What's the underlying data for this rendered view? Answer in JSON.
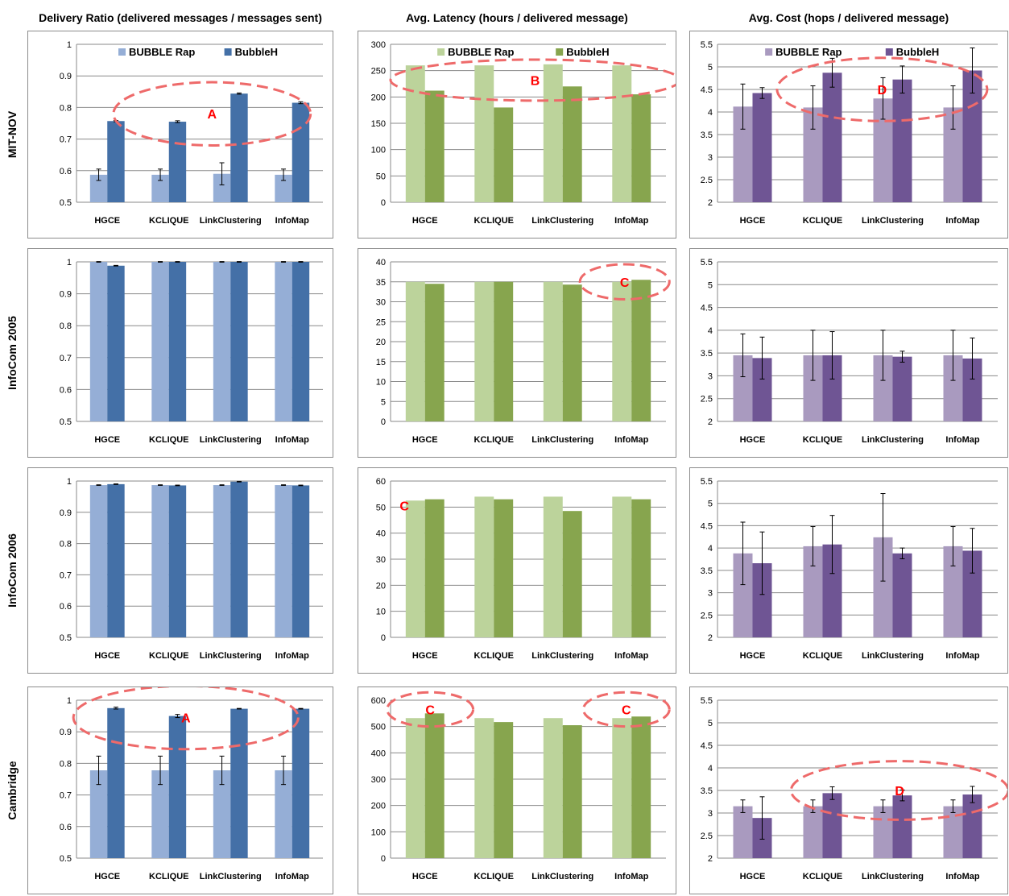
{
  "column_titles": [
    "Delivery Ratio (delivered messages / messages sent)",
    "Avg. Latency (hours / delivered message)",
    "Avg. Cost (hops / delivered message)"
  ],
  "row_labels": [
    "MIT-NOV",
    "InfoCom 2005",
    "InfoCom 2006",
    "Cambridge"
  ],
  "colors": {
    "ratio": [
      "#95aed6",
      "#4470a7"
    ],
    "latency": [
      "#bcd39b",
      "#87a54e"
    ],
    "cost": [
      "#a99abf",
      "#6f5594"
    ],
    "annotation": "#ee6a6a"
  },
  "chart_data": [
    {
      "type": "bar",
      "row": "MIT-NOV",
      "metric": "Delivery Ratio",
      "categories": [
        "HGCE",
        "KCLIQUE",
        "LinkClustering",
        "InfoMap"
      ],
      "ylim": [
        0.5,
        1
      ],
      "yticks": [
        "0.5",
        "0.6",
        "0.7",
        "0.8",
        "0.9",
        "1"
      ],
      "legend": [
        "BUBBLE Rap",
        "BubbleH"
      ],
      "series": [
        {
          "name": "BUBBLE Rap",
          "values": [
            0.587,
            0.587,
            0.59,
            0.587
          ],
          "errors": [
            0.018,
            0.018,
            0.035,
            0.018
          ]
        },
        {
          "name": "BubbleH",
          "values": [
            0.757,
            0.755,
            0.844,
            0.815
          ],
          "errors": [
            0.002,
            0.003,
            0.002,
            0.003
          ]
        }
      ],
      "annotations": [
        {
          "label": "A",
          "cat_from": 0.6,
          "cat_to": 3.8,
          "y": 0.78,
          "ry": 0.1
        }
      ]
    },
    {
      "type": "bar",
      "row": "MIT-NOV",
      "metric": "Avg. Latency",
      "categories": [
        "HGCE",
        "KCLIQUE",
        "LinkClustering",
        "InfoMap"
      ],
      "ylim": [
        0,
        300
      ],
      "yticks": [
        "0",
        "50",
        "100",
        "150",
        "200",
        "250",
        "300"
      ],
      "legend": [
        "BUBBLE Rap",
        "BubbleH"
      ],
      "series": [
        {
          "name": "BUBBLE Rap",
          "values": [
            260,
            260,
            262,
            260
          ]
        },
        {
          "name": "BubbleH",
          "values": [
            212,
            180,
            220,
            205
          ]
        }
      ],
      "annotations": [
        {
          "label": "B",
          "cat_from": 0.0,
          "cat_to": 4.2,
          "y": 232,
          "ry": 39
        }
      ]
    },
    {
      "type": "bar",
      "row": "MIT-NOV",
      "metric": "Avg. Cost",
      "categories": [
        "HGCE",
        "KCLIQUE",
        "LinkClustering",
        "InfoMap"
      ],
      "ylim": [
        2,
        5.5
      ],
      "yticks": [
        "2",
        "2.5",
        "3",
        "3.5",
        "4",
        "4.5",
        "5",
        "5.5"
      ],
      "legend": [
        "BUBBLE Rap",
        "BubbleH"
      ],
      "series": [
        {
          "name": "BUBBLE Rap",
          "values": [
            4.12,
            4.1,
            4.3,
            4.1
          ],
          "errors": [
            0.5,
            0.48,
            0.46,
            0.48
          ]
        },
        {
          "name": "BubbleH",
          "values": [
            4.42,
            4.87,
            4.72,
            4.92
          ],
          "errors": [
            0.12,
            0.32,
            0.3,
            0.5
          ]
        }
      ],
      "annotations": [
        {
          "label": "D",
          "cat_from": 0.85,
          "cat_to": 3.85,
          "y": 4.5,
          "ry": 0.7
        }
      ]
    },
    {
      "type": "bar",
      "row": "InfoCom 2005",
      "metric": "Delivery Ratio",
      "categories": [
        "HGCE",
        "KCLIQUE",
        "LinkClustering",
        "InfoMap"
      ],
      "ylim": [
        0.5,
        1
      ],
      "yticks": [
        "0.5",
        "0.6",
        "0.7",
        "0.8",
        "0.9",
        "1"
      ],
      "legend": [],
      "series": [
        {
          "name": "BUBBLE Rap",
          "values": [
            1,
            1,
            1,
            1
          ],
          "errors": [
            0.001,
            0.001,
            0.001,
            0.001
          ]
        },
        {
          "name": "BubbleH",
          "values": [
            0.988,
            1,
            1,
            1
          ],
          "errors": [
            0.001,
            0.001,
            0.001,
            0.001
          ]
        }
      ],
      "annotations": []
    },
    {
      "type": "bar",
      "row": "InfoCom 2005",
      "metric": "Avg. Latency",
      "categories": [
        "HGCE",
        "KCLIQUE",
        "LinkClustering",
        "InfoMap"
      ],
      "ylim": [
        0,
        40
      ],
      "yticks": [
        "0",
        "5",
        "10",
        "15",
        "20",
        "25",
        "30",
        "35",
        "40"
      ],
      "legend": [],
      "series": [
        {
          "name": "BUBBLE Rap",
          "values": [
            35,
            35,
            35,
            35
          ]
        },
        {
          "name": "BubbleH",
          "values": [
            34.5,
            35,
            34.3,
            35.5
          ]
        }
      ],
      "annotations": [
        {
          "label": "C",
          "cat_from": 2.75,
          "cat_to": 4.05,
          "y": 35,
          "ry": 4.4
        }
      ]
    },
    {
      "type": "bar",
      "row": "InfoCom 2005",
      "metric": "Avg. Cost",
      "categories": [
        "HGCE",
        "KCLIQUE",
        "LinkClustering",
        "InfoMap"
      ],
      "ylim": [
        2,
        5.5
      ],
      "yticks": [
        "2",
        "2.5",
        "3",
        "3.5",
        "4",
        "4.5",
        "5",
        "5.5"
      ],
      "legend": [],
      "series": [
        {
          "name": "BUBBLE Rap",
          "values": [
            3.45,
            3.45,
            3.45,
            3.45
          ],
          "errors": [
            0.47,
            0.55,
            0.55,
            0.55
          ]
        },
        {
          "name": "BubbleH",
          "values": [
            3.39,
            3.45,
            3.42,
            3.38
          ],
          "errors": [
            0.46,
            0.52,
            0.12,
            0.45
          ]
        }
      ],
      "annotations": []
    },
    {
      "type": "bar",
      "row": "InfoCom 2006",
      "metric": "Delivery Ratio",
      "categories": [
        "HGCE",
        "KCLIQUE",
        "LinkClustering",
        "InfoMap"
      ],
      "ylim": [
        0.5,
        1
      ],
      "yticks": [
        "0.5",
        "0.6",
        "0.7",
        "0.8",
        "0.9",
        "1"
      ],
      "legend": [],
      "series": [
        {
          "name": "BUBBLE Rap",
          "values": [
            0.987,
            0.987,
            0.987,
            0.987
          ],
          "errors": [
            0.001,
            0.001,
            0.001,
            0.001
          ]
        },
        {
          "name": "BubbleH",
          "values": [
            0.99,
            0.986,
            0.998,
            0.986
          ],
          "errors": [
            0.001,
            0.001,
            0.001,
            0.001
          ]
        }
      ],
      "annotations": []
    },
    {
      "type": "bar",
      "row": "InfoCom 2006",
      "metric": "Avg. Latency",
      "categories": [
        "HGCE",
        "KCLIQUE",
        "LinkClustering",
        "InfoMap"
      ],
      "ylim": [
        0,
        60
      ],
      "yticks": [
        "0",
        "10",
        "20",
        "30",
        "40",
        "50",
        "60"
      ],
      "legend": [],
      "series": [
        {
          "name": "BUBBLE Rap",
          "values": [
            52.5,
            54,
            54,
            54
          ]
        },
        {
          "name": "BubbleH",
          "values": [
            53,
            53,
            48.5,
            53
          ]
        }
      ],
      "annotations": [
        {
          "label": "C",
          "cat_from": null,
          "cat_to": null,
          "y": 50.5,
          "ry": 0,
          "cat_text": 0.2
        }
      ]
    },
    {
      "type": "bar",
      "row": "InfoCom 2006",
      "metric": "Avg. Cost",
      "categories": [
        "HGCE",
        "KCLIQUE",
        "LinkClustering",
        "InfoMap"
      ],
      "ylim": [
        2,
        5.5
      ],
      "yticks": [
        "2",
        "2.5",
        "3",
        "3.5",
        "4",
        "4.5",
        "5",
        "5.5"
      ],
      "legend": [],
      "series": [
        {
          "name": "BUBBLE Rap",
          "values": [
            3.88,
            4.04,
            4.24,
            4.04
          ],
          "errors": [
            0.7,
            0.44,
            0.98,
            0.44
          ]
        },
        {
          "name": "BubbleH",
          "values": [
            3.66,
            4.08,
            3.88,
            3.94
          ],
          "errors": [
            0.7,
            0.65,
            0.12,
            0.5
          ]
        }
      ],
      "annotations": []
    },
    {
      "type": "bar",
      "row": "Cambridge",
      "metric": "Delivery Ratio",
      "categories": [
        "HGCE",
        "KCLIQUE",
        "LinkClustering",
        "InfoMap"
      ],
      "ylim": [
        0.5,
        1
      ],
      "yticks": [
        "0.5",
        "0.6",
        "0.7",
        "0.8",
        "0.9",
        "1"
      ],
      "legend": [],
      "series": [
        {
          "name": "BUBBLE Rap",
          "values": [
            0.778,
            0.778,
            0.778,
            0.778
          ],
          "errors": [
            0.045,
            0.045,
            0.045,
            0.045
          ]
        },
        {
          "name": "BubbleH",
          "values": [
            0.975,
            0.95,
            0.973,
            0.973
          ],
          "errors": [
            0.003,
            0.005,
            0.001,
            0.001
          ]
        }
      ],
      "annotations": [
        {
          "label": "A",
          "cat_from": -0.05,
          "cat_to": 3.6,
          "y": 0.945,
          "ry": 0.1
        }
      ]
    },
    {
      "type": "bar",
      "row": "Cambridge",
      "metric": "Avg. Latency",
      "categories": [
        "HGCE",
        "KCLIQUE",
        "LinkClustering",
        "InfoMap"
      ],
      "ylim": [
        0,
        600
      ],
      "yticks": [
        "0",
        "100",
        "200",
        "300",
        "400",
        "500",
        "600"
      ],
      "legend": [],
      "series": [
        {
          "name": "BUBBLE Rap",
          "values": [
            532,
            532,
            532,
            532
          ]
        },
        {
          "name": "BubbleH",
          "values": [
            550,
            517,
            505,
            538
          ]
        }
      ],
      "annotations": [
        {
          "label": "C",
          "cat_from": -0.05,
          "cat_to": 1.2,
          "y": 565,
          "ry": 65
        },
        {
          "label": "C",
          "cat_from": 2.8,
          "cat_to": 4.05,
          "y": 565,
          "ry": 65
        }
      ]
    },
    {
      "type": "bar",
      "row": "Cambridge",
      "metric": "Avg. Cost",
      "categories": [
        "HGCE",
        "KCLIQUE",
        "LinkClustering",
        "InfoMap"
      ],
      "ylim": [
        2,
        5.5
      ],
      "yticks": [
        "2",
        "2.5",
        "3",
        "3.5",
        "4",
        "4.5",
        "5",
        "5.5"
      ],
      "legend": [],
      "series": [
        {
          "name": "BUBBLE Rap",
          "values": [
            3.15,
            3.15,
            3.15,
            3.15
          ],
          "errors": [
            0.14,
            0.14,
            0.14,
            0.14
          ]
        },
        {
          "name": "BubbleH",
          "values": [
            2.89,
            3.44,
            3.39,
            3.41
          ],
          "errors": [
            0.47,
            0.14,
            0.12,
            0.18
          ]
        }
      ],
      "annotations": [
        {
          "label": "D",
          "cat_from": 1.05,
          "cat_to": 4.15,
          "y": 3.5,
          "ry": 0.65
        }
      ]
    }
  ]
}
